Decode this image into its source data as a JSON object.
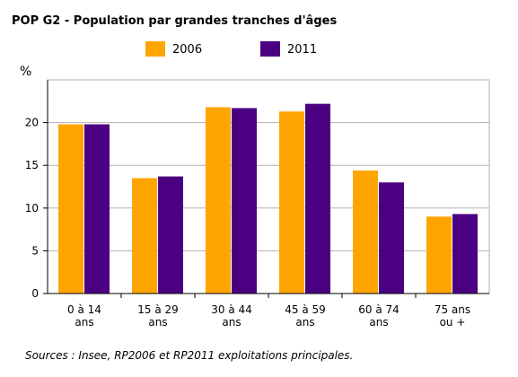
{
  "chart_data": {
    "type": "bar",
    "title": "POP G2 - Population par grandes tranches d'âges",
    "ylabel": "%",
    "xlabel": "",
    "ylim": [
      0,
      25
    ],
    "yticks": [
      0,
      5,
      10,
      15,
      20
    ],
    "grid": true,
    "legend": "top-center",
    "categories": [
      [
        "0 à 14",
        "ans"
      ],
      [
        "15 à 29",
        "ans"
      ],
      [
        "30 à 44",
        "ans"
      ],
      [
        "45 à 59",
        "ans"
      ],
      [
        "60 à 74",
        "ans"
      ],
      [
        "75 ans",
        "ou +"
      ]
    ],
    "series": [
      {
        "name": "2006",
        "color": "#ffa500",
        "values": [
          19.8,
          13.5,
          21.8,
          21.3,
          14.4,
          9.0
        ]
      },
      {
        "name": "2011",
        "color": "#4b0082",
        "values": [
          19.8,
          13.7,
          21.7,
          22.2,
          13.0,
          9.3
        ]
      }
    ],
    "source": "Sources : Insee, RP2006 et RP2011 exploitations principales."
  }
}
